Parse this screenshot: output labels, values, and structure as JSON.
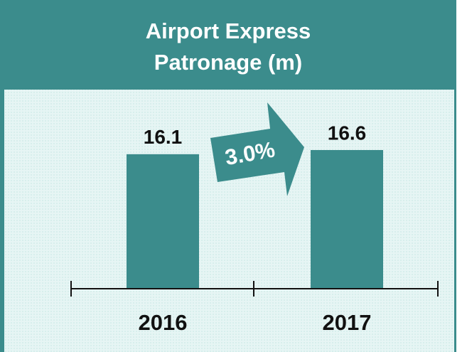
{
  "chart_data": {
    "type": "bar",
    "title": "Airport Express Patronage (m)",
    "categories": [
      "2016",
      "2017"
    ],
    "values": [
      16.1,
      16.6
    ],
    "color": "#3b8c8c",
    "annotation": "3.0%"
  }
}
